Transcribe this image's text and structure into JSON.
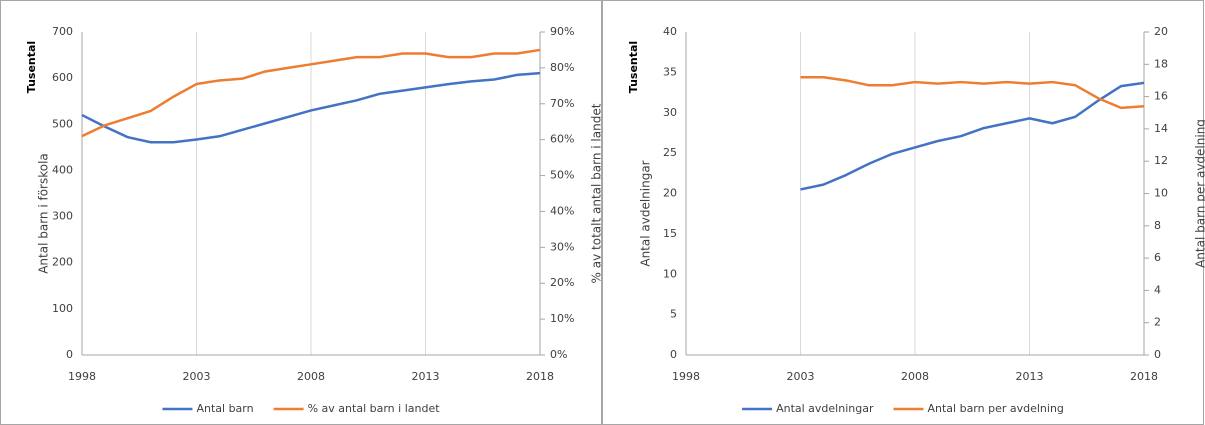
{
  "chart_data": [
    {
      "type": "line",
      "annotation": "Tusental",
      "y_label": "Antal barn i förskola",
      "y2_label": "% av totalt antal barn i landet",
      "x": [
        1998,
        1999,
        2000,
        2001,
        2002,
        2003,
        2004,
        2005,
        2006,
        2007,
        2008,
        2009,
        2010,
        2011,
        2012,
        2013,
        2014,
        2015,
        2016,
        2017,
        2018
      ],
      "xlim": [
        1998,
        2018
      ],
      "xticks": [
        1998,
        2003,
        2008,
        2013,
        2018
      ],
      "grid": "x",
      "ylim": [
        0,
        700
      ],
      "yticks": [
        0,
        100,
        200,
        300,
        400,
        500,
        600,
        700
      ],
      "y2lim": [
        0,
        90
      ],
      "y2ticks": [
        {
          "value": 0,
          "label": "0%"
        },
        {
          "value": 10,
          "label": "10%"
        },
        {
          "value": 20,
          "label": "20%"
        },
        {
          "value": 30,
          "label": "30%"
        },
        {
          "value": 40,
          "label": "40%"
        },
        {
          "value": 50,
          "label": "50%"
        },
        {
          "value": 60,
          "label": "60%"
        },
        {
          "value": 70,
          "label": "70%"
        },
        {
          "value": 80,
          "label": "80%"
        },
        {
          "value": 90,
          "label": "90%"
        }
      ],
      "legend": "bottom",
      "series": [
        {
          "name": "Antal barn",
          "color": "#4472c4",
          "values": [
            520,
            495,
            472,
            461,
            461,
            467,
            474,
            488,
            502,
            516,
            530,
            541,
            552,
            566,
            573,
            580,
            587,
            593,
            597,
            607,
            611
          ]
        },
        {
          "name": "% av antal barn i landet",
          "color": "#ed7d31",
          "axis": "y2",
          "values": [
            61,
            64,
            66,
            68,
            72,
            75.5,
            76.5,
            77,
            79,
            80,
            81,
            82,
            83,
            83,
            84,
            84,
            83,
            83,
            84,
            84,
            85
          ]
        }
      ]
    },
    {
      "type": "line",
      "annotation": "Tusental",
      "y_label": "Antal avdelningar",
      "y2_label": "Antal barn per avdelning",
      "x": [
        2003,
        2004,
        2005,
        2006,
        2007,
        2008,
        2009,
        2010,
        2011,
        2012,
        2013,
        2014,
        2015,
        2016,
        2017,
        2018
      ],
      "xlim": [
        1998,
        2018
      ],
      "xticks": [
        1998,
        2003,
        2008,
        2013,
        2018
      ],
      "grid": "x",
      "ylim": [
        0,
        40
      ],
      "yticks": [
        0,
        5,
        10,
        15,
        20,
        25,
        30,
        35,
        40
      ],
      "y2lim": [
        0,
        20
      ],
      "y2ticks": [
        0,
        2,
        4,
        6,
        8,
        10,
        12,
        14,
        16,
        18,
        20
      ],
      "legend": "bottom",
      "series": [
        {
          "name": "Antal avdelningar",
          "color": "#4472c4",
          "values": [
            20.5,
            21.1,
            22.3,
            23.7,
            24.9,
            25.7,
            26.5,
            27.1,
            28.1,
            28.7,
            29.3,
            28.7,
            29.5,
            31.5,
            33.3,
            33.7
          ]
        },
        {
          "name": "Antal barn per avdelning",
          "color": "#ed7d31",
          "axis": "y2",
          "values": [
            17.2,
            17.2,
            17.0,
            16.7,
            16.7,
            16.9,
            16.8,
            16.9,
            16.8,
            16.9,
            16.8,
            16.9,
            16.7,
            15.9,
            15.3,
            15.4
          ]
        }
      ]
    }
  ]
}
